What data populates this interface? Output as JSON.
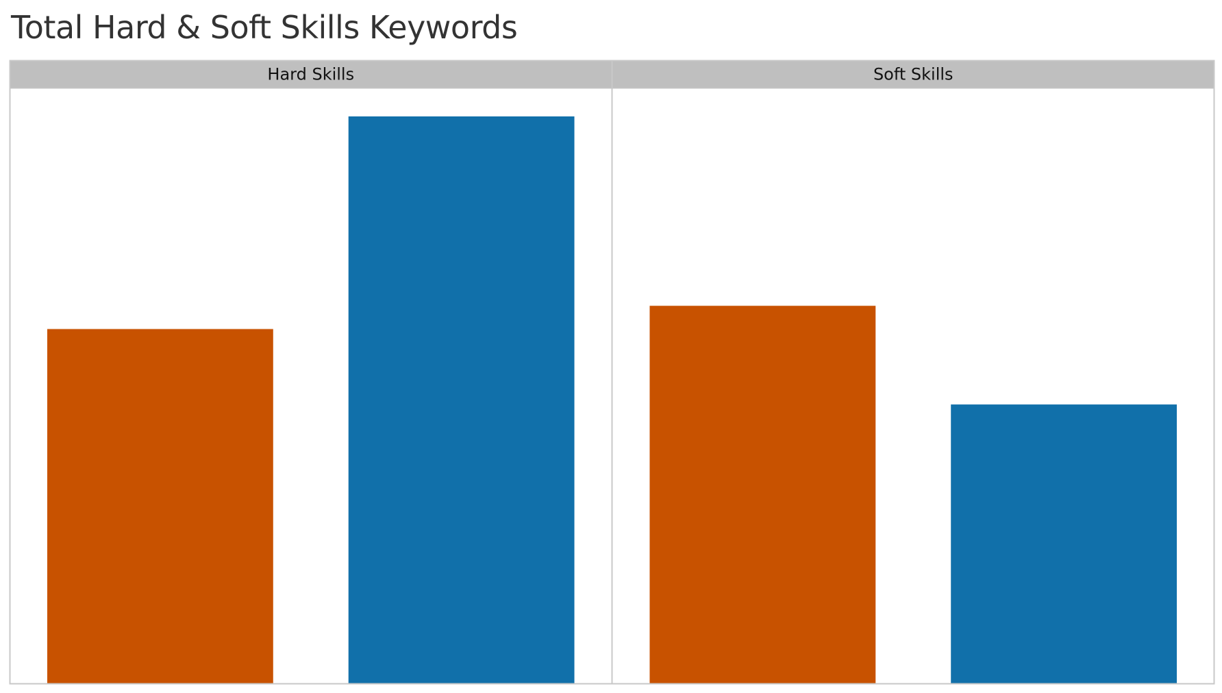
{
  "chart_data": {
    "type": "bar",
    "title": "Total Hard & Soft Skills Keywords",
    "xlabel": "",
    "ylabel": "",
    "ylim": [
      0,
      100
    ],
    "grid": false,
    "legend": "none",
    "panels": [
      {
        "name": "Hard Skills",
        "bars": [
          {
            "value": 62.5,
            "color": "#C85200"
          },
          {
            "value": 100,
            "color": "#1170AA"
          }
        ]
      },
      {
        "name": "Soft Skills",
        "bars": [
          {
            "value": 66.6,
            "color": "#C85200"
          },
          {
            "value": 49.2,
            "color": "#1170AA"
          }
        ]
      }
    ]
  }
}
